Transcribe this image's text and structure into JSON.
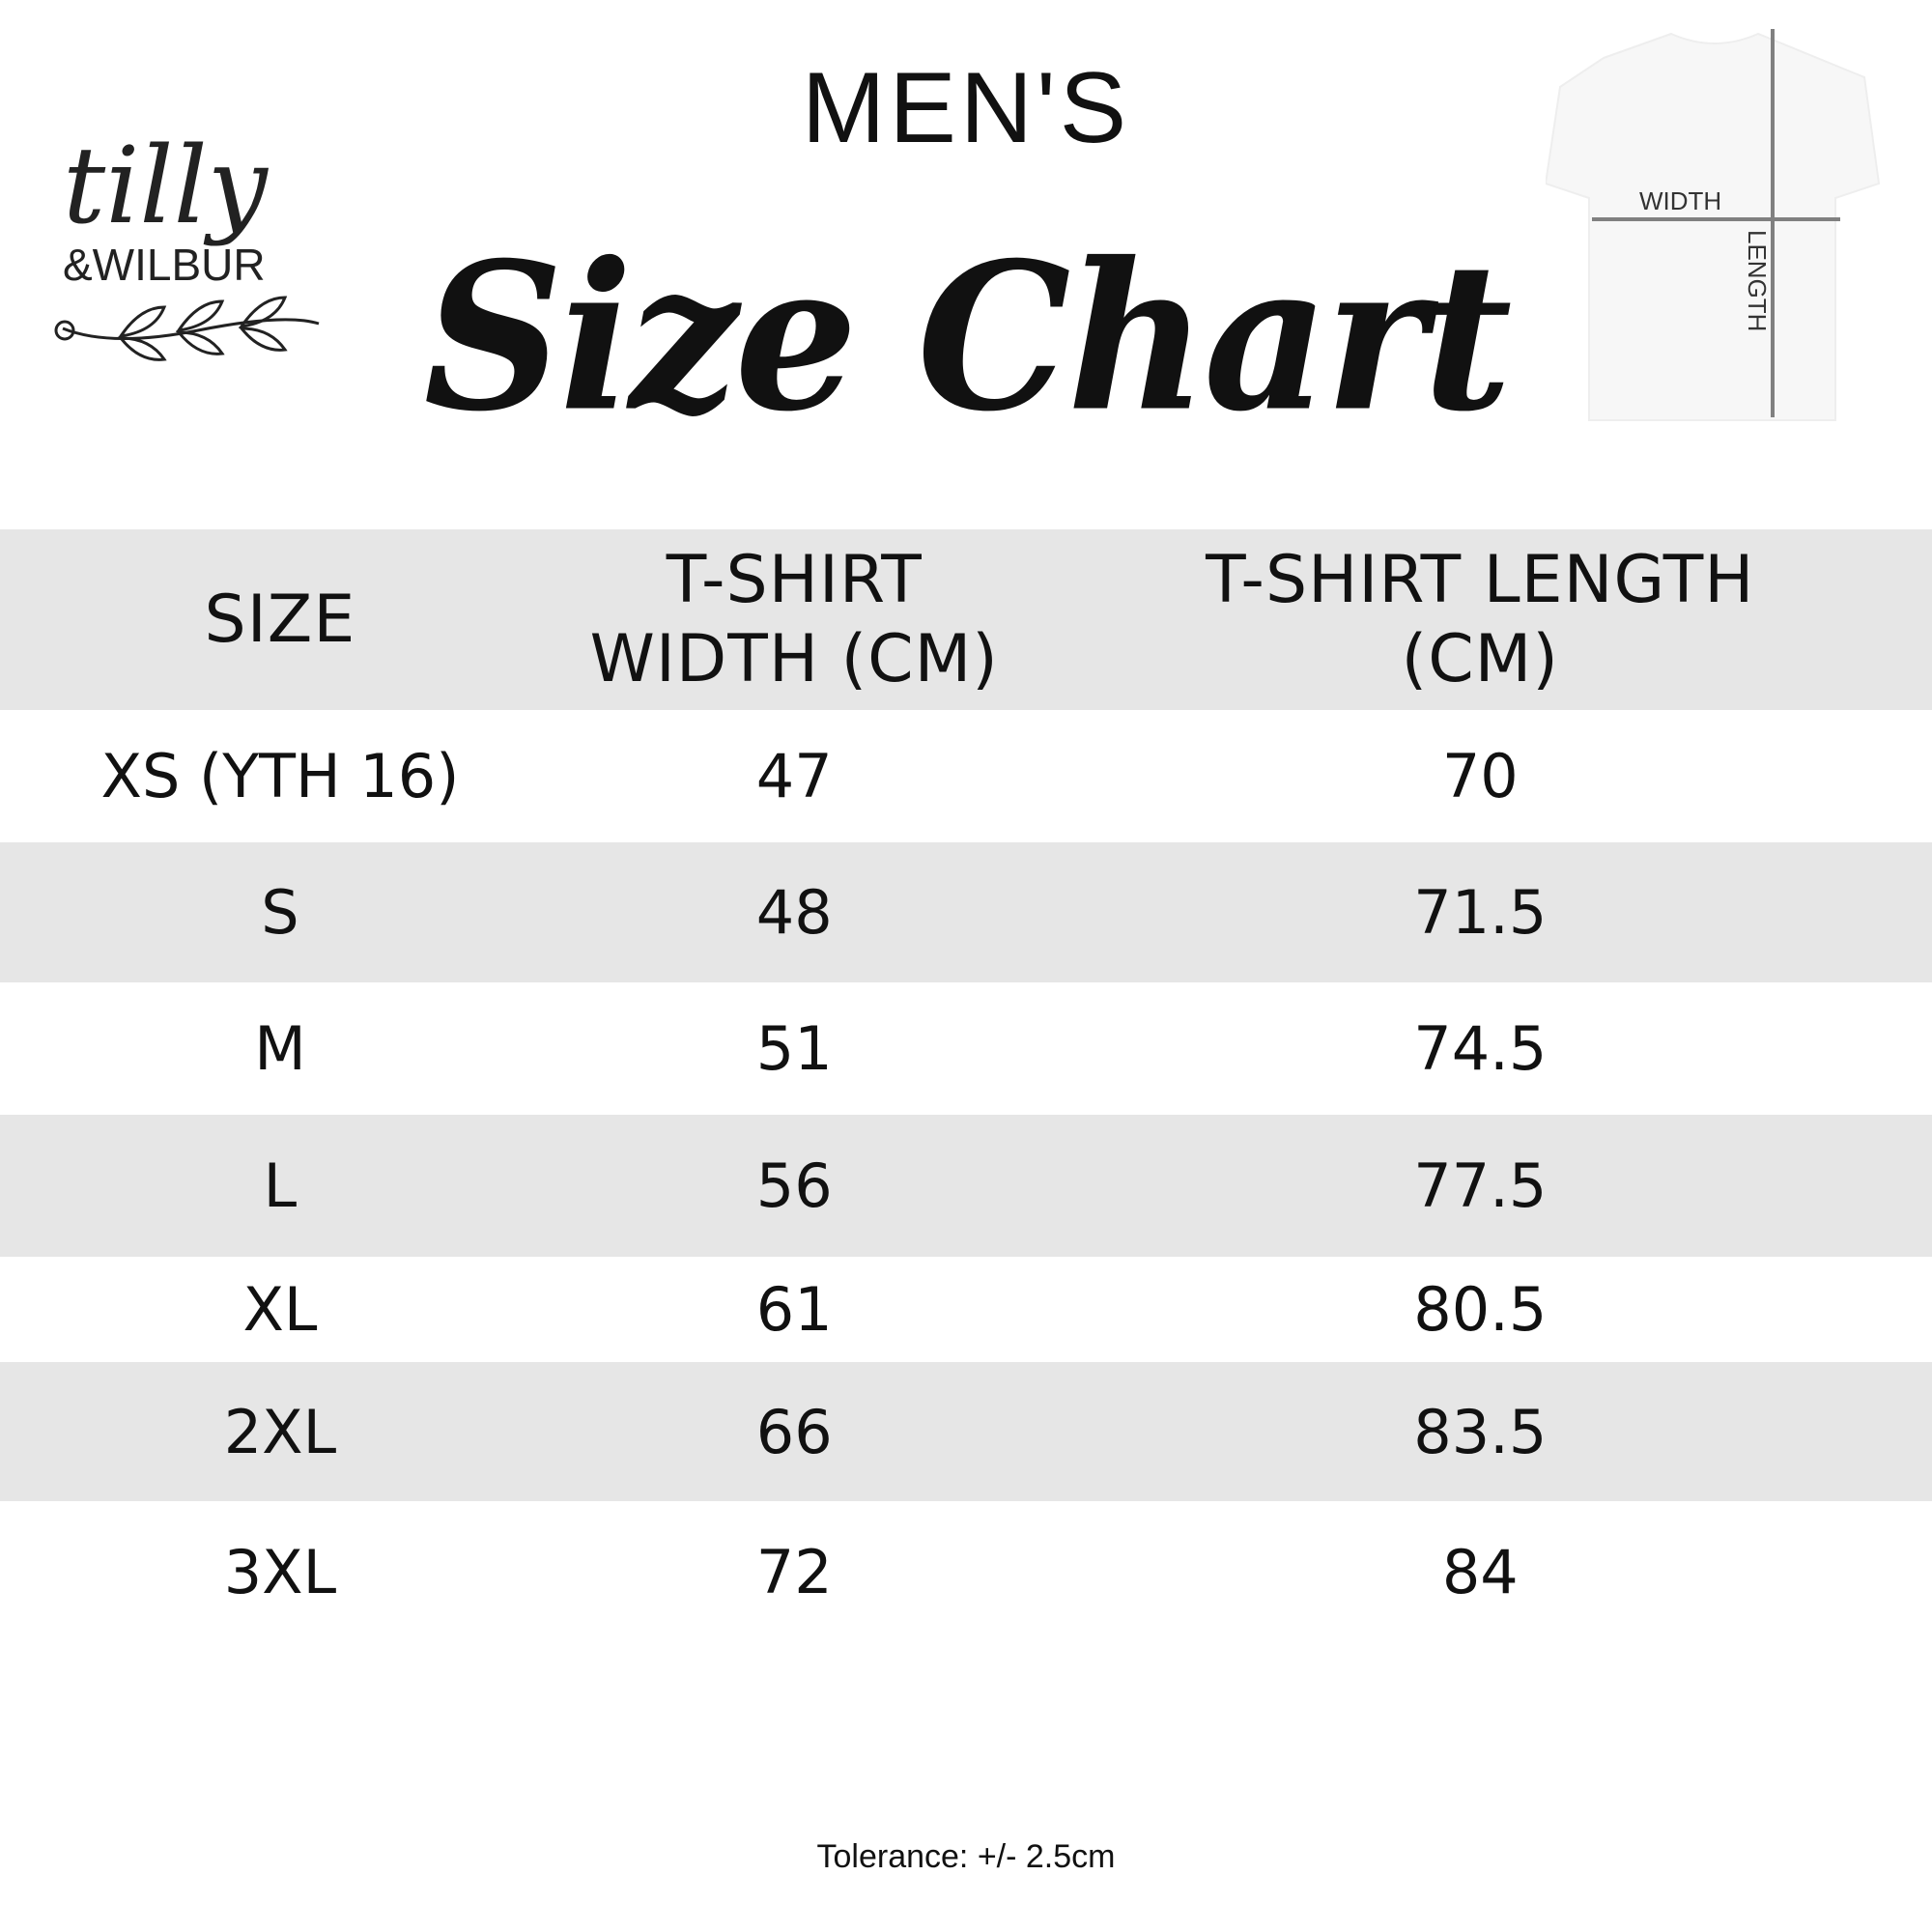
{
  "brand": {
    "logo_text": "tilly & WILBUR"
  },
  "header": {
    "subtitle": "MEN'S",
    "title": "Size Chart"
  },
  "diagram": {
    "width_label": "WIDTH",
    "length_label": "LENGTH"
  },
  "table": {
    "columns": [
      "SIZE",
      "T-SHIRT WIDTH (CM)",
      "T-SHIRT LENGTH (CM)"
    ],
    "rows": [
      [
        "XS (YTH 16)",
        "47",
        "70"
      ],
      [
        "S",
        "48",
        "71.5"
      ],
      [
        "M",
        "51",
        "74.5"
      ],
      [
        "L",
        "56",
        "77.5"
      ],
      [
        "XL",
        "61",
        "80.5"
      ],
      [
        "2XL",
        "66",
        "83.5"
      ],
      [
        "3XL",
        "72",
        "84"
      ]
    ],
    "stripe_color": "#e6e6e6"
  },
  "footer": {
    "tolerance": "Tolerance: +/- 2.5cm"
  }
}
